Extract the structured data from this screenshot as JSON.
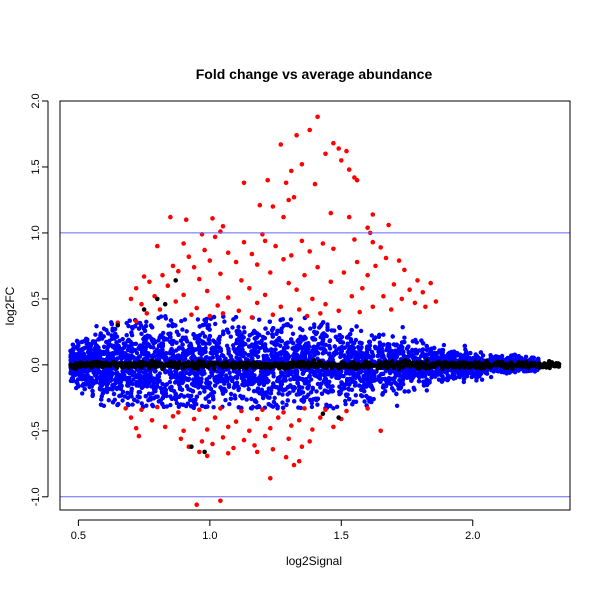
{
  "chart_data": {
    "type": "scatter",
    "title": "Fold change vs average abundance",
    "xlabel": "log2Signal",
    "ylabel": "log2FC",
    "xlim": [
      0.43,
      2.37
    ],
    "ylim": [
      -1.1,
      2.0
    ],
    "x_ticks": [
      0.5,
      1.0,
      1.5,
      2.0
    ],
    "x_tick_labels": [
      "0.5",
      "1.0",
      "1.5",
      "2.0"
    ],
    "y_ticks": [
      -1.0,
      -0.5,
      0.0,
      0.5,
      1.0,
      1.5,
      2.0
    ],
    "y_tick_labels": [
      "-1.0",
      "-0.5",
      "0.0",
      "0.5",
      "1.0",
      "1.5",
      "2.0"
    ],
    "reference_lines": [
      {
        "y": 1.0,
        "color": "#6666ff"
      },
      {
        "y": -1.0,
        "color": "#6666ff"
      }
    ],
    "grid": false,
    "colors": {
      "blue": "#0000ff",
      "red": "#ff0000",
      "black": "#000000"
    },
    "series": [
      {
        "color": "#ff0000",
        "points": [
          [
            1.41,
            1.88
          ],
          [
            1.38,
            1.78
          ],
          [
            1.33,
            1.74
          ],
          [
            1.47,
            1.68
          ],
          [
            1.49,
            1.64
          ],
          [
            1.27,
            1.67
          ],
          [
            1.44,
            1.6
          ],
          [
            1.52,
            1.62
          ],
          [
            1.5,
            1.55
          ],
          [
            1.53,
            1.48
          ],
          [
            1.35,
            1.52
          ],
          [
            1.31,
            1.47
          ],
          [
            1.56,
            1.4
          ],
          [
            1.55,
            1.42
          ],
          [
            1.29,
            1.38
          ],
          [
            1.4,
            1.37
          ],
          [
            1.13,
            1.38
          ],
          [
            1.22,
            1.4
          ],
          [
            1.32,
            1.27
          ],
          [
            1.3,
            1.25
          ],
          [
            1.62,
            1.14
          ],
          [
            1.19,
            1.21
          ],
          [
            1.24,
            1.2
          ],
          [
            1.28,
            1.12
          ],
          [
            1.46,
            1.15
          ],
          [
            1.53,
            1.12
          ],
          [
            0.85,
            1.12
          ],
          [
            0.91,
            1.1
          ],
          [
            1.01,
            1.11
          ],
          [
            1.68,
            1.06
          ],
          [
            1.05,
            1.05
          ],
          [
            1.6,
            1.04
          ],
          [
            1.61,
            1.0
          ],
          [
            1.04,
            1.01
          ],
          [
            0.97,
            0.99
          ],
          [
            1.2,
            0.99
          ],
          [
            1.02,
            0.97
          ],
          [
            1.35,
            0.94
          ],
          [
            1.55,
            0.95
          ],
          [
            0.9,
            0.92
          ],
          [
            1.13,
            0.93
          ],
          [
            1.21,
            0.94
          ],
          [
            1.43,
            0.92
          ],
          [
            1.62,
            0.93
          ],
          [
            1.65,
            0.89
          ],
          [
            1.25,
            0.9
          ],
          [
            0.8,
            0.9
          ],
          [
            0.98,
            0.87
          ],
          [
            1.07,
            0.85
          ],
          [
            1.38,
            0.86
          ],
          [
            1.47,
            0.88
          ],
          [
            0.92,
            0.82
          ],
          [
            1.16,
            0.84
          ],
          [
            1.31,
            0.83
          ],
          [
            1.67,
            0.81
          ],
          [
            1.72,
            0.79
          ],
          [
            1.0,
            0.79
          ],
          [
            1.1,
            0.78
          ],
          [
            1.28,
            0.8
          ],
          [
            1.56,
            0.78
          ],
          [
            0.86,
            0.75
          ],
          [
            0.94,
            0.74
          ],
          [
            1.18,
            0.76
          ],
          [
            1.41,
            0.74
          ],
          [
            1.63,
            0.75
          ],
          [
            1.74,
            0.72
          ],
          [
            0.75,
            0.67
          ],
          [
            0.82,
            0.68
          ],
          [
            0.88,
            0.71
          ],
          [
            1.04,
            0.69
          ],
          [
            1.23,
            0.7
          ],
          [
            1.36,
            0.68
          ],
          [
            1.51,
            0.7
          ],
          [
            1.6,
            0.68
          ],
          [
            1.79,
            0.64
          ],
          [
            1.84,
            0.62
          ],
          [
            0.77,
            0.63
          ],
          [
            0.96,
            0.65
          ],
          [
            1.12,
            0.64
          ],
          [
            1.3,
            0.62
          ],
          [
            1.46,
            0.63
          ],
          [
            1.7,
            0.61
          ],
          [
            1.76,
            0.57
          ],
          [
            1.81,
            0.55
          ],
          [
            0.72,
            0.58
          ],
          [
            0.84,
            0.6
          ],
          [
            0.99,
            0.56
          ],
          [
            1.15,
            0.58
          ],
          [
            1.33,
            0.57
          ],
          [
            1.58,
            0.58
          ],
          [
            1.66,
            0.52
          ],
          [
            0.7,
            0.5
          ],
          [
            0.79,
            0.52
          ],
          [
            0.9,
            0.53
          ],
          [
            1.07,
            0.51
          ],
          [
            1.21,
            0.53
          ],
          [
            1.39,
            0.5
          ],
          [
            1.54,
            0.52
          ],
          [
            1.73,
            0.5
          ],
          [
            1.78,
            0.47
          ],
          [
            1.86,
            0.48
          ],
          [
            1.82,
            0.44
          ],
          [
            0.74,
            0.46
          ],
          [
            0.87,
            0.48
          ],
          [
            1.03,
            0.45
          ],
          [
            1.18,
            0.47
          ],
          [
            1.27,
            0.44
          ],
          [
            1.44,
            0.46
          ],
          [
            1.62,
            0.44
          ],
          [
            1.69,
            0.42
          ],
          [
            0.81,
            0.42
          ],
          [
            0.95,
            0.43
          ],
          [
            1.11,
            0.41
          ],
          [
            1.34,
            0.42
          ],
          [
            1.49,
            0.41
          ],
          [
            1.57,
            0.4
          ],
          [
            0.76,
            0.39
          ],
          [
            0.93,
            0.38
          ],
          [
            1.05,
            0.39
          ],
          [
            1.24,
            0.38
          ],
          [
            1.42,
            0.39
          ],
          [
            0.65,
            0.32
          ],
          [
            0.72,
            0.33
          ],
          [
            1.0,
            0.37
          ],
          [
            1.16,
            0.36
          ],
          [
            1.37,
            0.37
          ],
          [
            0.68,
            -0.33
          ],
          [
            0.74,
            -0.34
          ],
          [
            0.8,
            -0.32
          ],
          [
            0.88,
            -0.36
          ],
          [
            0.96,
            -0.34
          ],
          [
            1.04,
            -0.33
          ],
          [
            1.12,
            -0.35
          ],
          [
            1.2,
            -0.34
          ],
          [
            1.28,
            -0.36
          ],
          [
            1.36,
            -0.33
          ],
          [
            1.44,
            -0.34
          ],
          [
            1.52,
            -0.35
          ],
          [
            1.6,
            -0.33
          ],
          [
            0.7,
            -0.4
          ],
          [
            0.78,
            -0.42
          ],
          [
            0.86,
            -0.39
          ],
          [
            0.94,
            -0.41
          ],
          [
            1.02,
            -0.4
          ],
          [
            1.1,
            -0.43
          ],
          [
            1.18,
            -0.41
          ],
          [
            1.26,
            -0.4
          ],
          [
            1.34,
            -0.42
          ],
          [
            1.42,
            -0.4
          ],
          [
            1.5,
            -0.41
          ],
          [
            0.72,
            -0.48
          ],
          [
            0.83,
            -0.47
          ],
          [
            0.9,
            -0.5
          ],
          [
            0.99,
            -0.49
          ],
          [
            1.07,
            -0.47
          ],
          [
            1.15,
            -0.5
          ],
          [
            1.23,
            -0.48
          ],
          [
            1.31,
            -0.46
          ],
          [
            1.39,
            -0.49
          ],
          [
            1.47,
            -0.47
          ],
          [
            0.73,
            -0.54
          ],
          [
            0.89,
            -0.56
          ],
          [
            0.97,
            -0.58
          ],
          [
            1.05,
            -0.55
          ],
          [
            1.13,
            -0.57
          ],
          [
            1.21,
            -0.54
          ],
          [
            1.3,
            -0.56
          ],
          [
            1.38,
            -0.58
          ],
          [
            0.92,
            -0.62
          ],
          [
            1.01,
            -0.6
          ],
          [
            1.09,
            -0.63
          ],
          [
            1.17,
            -0.61
          ],
          [
            1.24,
            -0.64
          ],
          [
            1.35,
            -0.62
          ],
          [
            0.96,
            -0.66
          ],
          [
            1.07,
            -0.67
          ],
          [
            1.18,
            -0.66
          ],
          [
            1.29,
            -0.7
          ],
          [
            1.34,
            -0.73
          ],
          [
            1.65,
            -0.5
          ],
          [
            1.32,
            -0.76
          ],
          [
            1.23,
            -0.86
          ],
          [
            0.95,
            -1.06
          ],
          [
            1.04,
            -1.03
          ],
          [
            0.99,
            -0.69
          ]
        ]
      },
      {
        "color": "#000000",
        "points": [
          [
            0.87,
            0.64
          ],
          [
            0.8,
            0.5
          ],
          [
            0.83,
            0.46
          ],
          [
            0.75,
            0.42
          ],
          [
            0.65,
            0.3
          ],
          [
            0.93,
            -0.62
          ],
          [
            0.98,
            -0.66
          ],
          [
            1.49,
            -0.4
          ],
          [
            1.43,
            -0.37
          ]
        ]
      }
    ]
  }
}
